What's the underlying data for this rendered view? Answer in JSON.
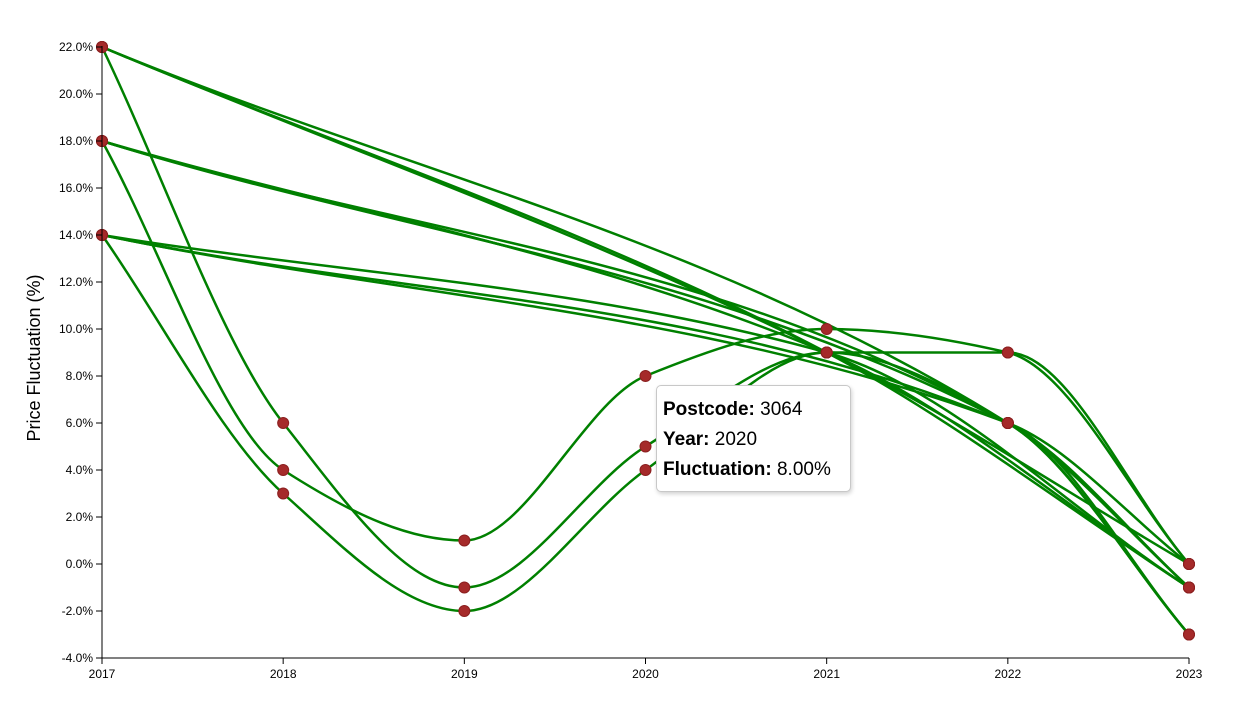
{
  "chart_data": {
    "type": "line",
    "ylabel": "Price Fluctuation (%)",
    "xlabel": "",
    "x": [
      "2017",
      "2018",
      "2019",
      "2020",
      "2021",
      "2022",
      "2023"
    ],
    "y_ticks": [
      "-4.0%",
      "-2.0%",
      "0.0%",
      "2.0%",
      "4.0%",
      "6.0%",
      "8.0%",
      "10.0%",
      "12.0%",
      "14.0%",
      "16.0%",
      "18.0%",
      "20.0%",
      "22.0%"
    ],
    "ylim": [
      -4,
      22
    ],
    "grid": false,
    "line_color": "#008000",
    "point_color": "#a52a2a",
    "series": [
      {
        "points": [
          [
            2017,
            22
          ],
          [
            2021,
            9
          ],
          [
            2023,
            0
          ]
        ]
      },
      {
        "points": [
          [
            2017,
            22
          ],
          [
            2021,
            9
          ],
          [
            2023,
            -1
          ]
        ]
      },
      {
        "points": [
          [
            2017,
            22
          ],
          [
            2022,
            6
          ],
          [
            2023,
            -1
          ]
        ]
      },
      {
        "points": [
          [
            2017,
            22
          ],
          [
            2018,
            6
          ],
          [
            2019,
            -1
          ],
          [
            2020,
            5
          ],
          [
            2021,
            9
          ],
          [
            2022,
            6
          ],
          [
            2023,
            -3
          ]
        ]
      },
      {
        "points": [
          [
            2017,
            18
          ],
          [
            2021,
            9
          ],
          [
            2023,
            -1
          ]
        ]
      },
      {
        "points": [
          [
            2017,
            18
          ],
          [
            2022,
            6
          ],
          [
            2023,
            -1
          ]
        ]
      },
      {
        "points": [
          [
            2017,
            18
          ],
          [
            2022,
            6
          ],
          [
            2023,
            -3
          ]
        ]
      },
      {
        "points": [
          [
            2017,
            18
          ],
          [
            2018,
            4
          ],
          [
            2019,
            1
          ],
          [
            2020,
            8
          ],
          [
            2021,
            10
          ],
          [
            2022,
            9
          ],
          [
            2023,
            0
          ]
        ]
      },
      {
        "points": [
          [
            2017,
            14
          ],
          [
            2021,
            9
          ],
          [
            2023,
            -1
          ]
        ]
      },
      {
        "points": [
          [
            2017,
            14
          ],
          [
            2022,
            6
          ],
          [
            2023,
            -3
          ]
        ]
      },
      {
        "points": [
          [
            2017,
            14
          ],
          [
            2022,
            6
          ],
          [
            2023,
            0
          ]
        ]
      },
      {
        "points": [
          [
            2017,
            14
          ],
          [
            2018,
            3
          ],
          [
            2019,
            -2
          ],
          [
            2020,
            4
          ],
          [
            2021,
            9
          ],
          [
            2022,
            9
          ],
          [
            2023,
            0
          ]
        ]
      }
    ]
  },
  "tooltip": {
    "postcode_label": "Postcode:",
    "postcode_value": "3064",
    "year_label": "Year:",
    "year_value": "2020",
    "fluctuation_label": "Fluctuation:",
    "fluctuation_value": "8.00%"
  }
}
